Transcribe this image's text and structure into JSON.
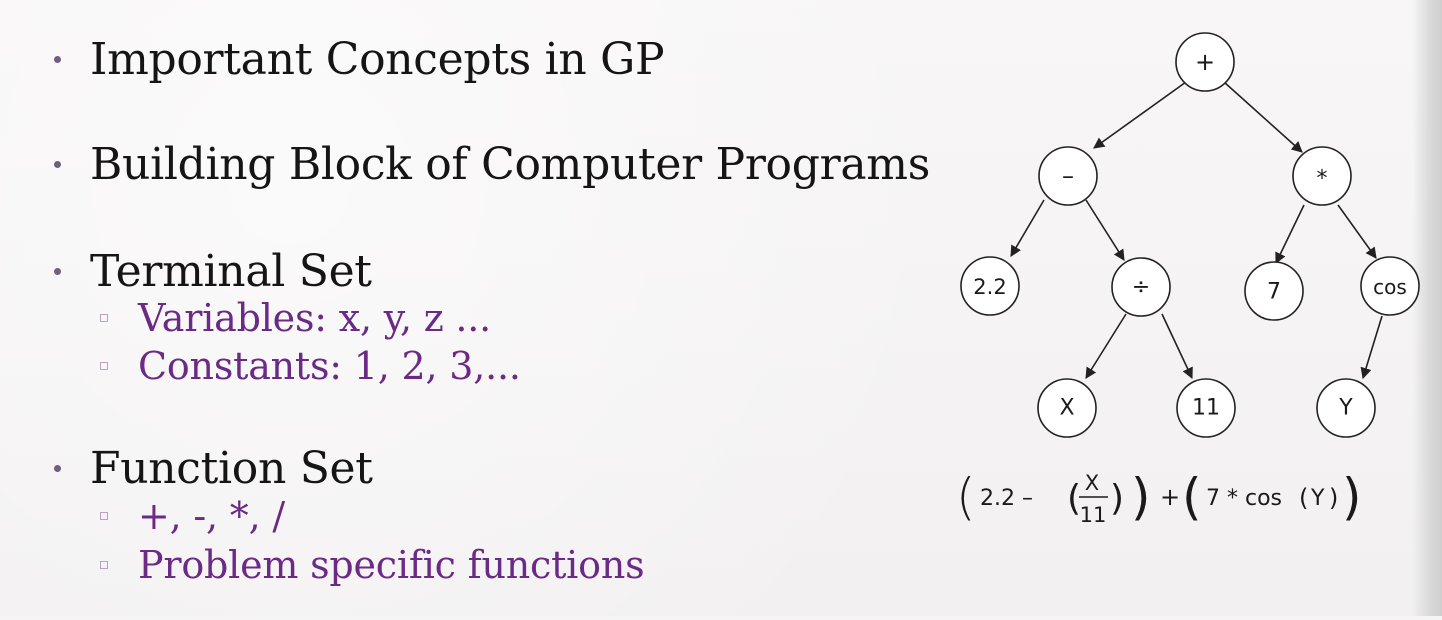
{
  "bullets": [
    {
      "text": "Important Concepts in GP"
    },
    {
      "text": "Building Block of Computer Programs"
    },
    {
      "text": "Terminal Set",
      "subs": [
        "Variables: x, y, z ...",
        "Constants: 1, 2, 3,..."
      ]
    },
    {
      "text": "Function Set",
      "subs": [
        "+, -, *, /",
        "Problem specific functions"
      ]
    }
  ],
  "tree": {
    "nodes": {
      "root": "+",
      "minus": "–",
      "times": "*",
      "c22": "2.2",
      "div": "÷",
      "c7": "7",
      "cos": "cos",
      "x": "X",
      "c11": "11",
      "y": "Y"
    },
    "formula": {
      "p1": "2.2 –",
      "num": "X",
      "den": "11",
      "plus": "+",
      "p2": "7 * cos",
      "arg": "Y"
    }
  },
  "colors": {
    "bullet_text": "#151515",
    "sub_text": "#6b2a86",
    "bullet_dot": "#6f5f7f",
    "sub_square": "#b7a2c7",
    "tree_stroke": "#222222"
  }
}
